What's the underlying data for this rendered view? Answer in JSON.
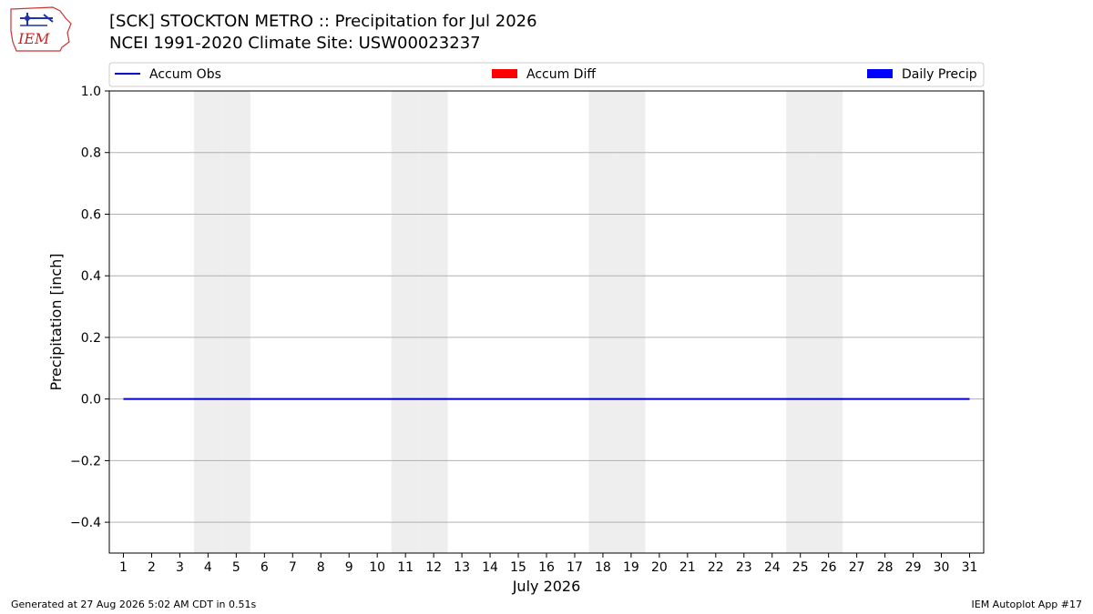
{
  "header": {
    "title_line1": "[SCK] STOCKTON METRO :: Precipitation for Jul 2026",
    "title_line2": "NCEI 1991-2020 Climate Site: USW00023237"
  },
  "logo": {
    "text": "IEM",
    "color": "#cc2222"
  },
  "footer": {
    "generated": "Generated at 27 Aug 2026 5:02 AM CDT in 0.51s",
    "app": "IEM Autoplot App #17"
  },
  "chart_data": {
    "type": "line",
    "xlabel": "July 2026",
    "ylabel": "Precipitation [inch]",
    "ylim": [
      -0.5,
      1.0
    ],
    "yticks": [
      -0.4,
      -0.2,
      0.0,
      0.2,
      0.4,
      0.6,
      0.8,
      1.0
    ],
    "ytick_labels": [
      "−0.4",
      "−0.2",
      "0.0",
      "0.2",
      "0.4",
      "0.6",
      "0.8",
      "1.0"
    ],
    "categories": [
      "1",
      "2",
      "3",
      "4",
      "5",
      "6",
      "7",
      "8",
      "9",
      "10",
      "11",
      "12",
      "13",
      "14",
      "15",
      "16",
      "17",
      "18",
      "19",
      "20",
      "21",
      "22",
      "23",
      "24",
      "25",
      "26",
      "27",
      "28",
      "29",
      "30",
      "31"
    ],
    "weekend_days": [
      4,
      5,
      11,
      12,
      18,
      19,
      25,
      26
    ],
    "grid": "horizontal",
    "legend_position": "top",
    "legend": [
      {
        "label": "Accum Obs",
        "kind": "line",
        "color": "#0000cc"
      },
      {
        "label": "Accum Diff",
        "kind": "bar",
        "color": "#ff0000"
      },
      {
        "label": "Daily Precip",
        "kind": "bar",
        "color": "#0000ff"
      }
    ],
    "series": [
      {
        "name": "Accum Obs",
        "kind": "line",
        "color": "#0000cc",
        "values": [
          0,
          0,
          0,
          0,
          0,
          0,
          0,
          0,
          0,
          0,
          0,
          0,
          0,
          0,
          0,
          0,
          0,
          0,
          0,
          0,
          0,
          0,
          0,
          0,
          0,
          0,
          0,
          0,
          0,
          0,
          0
        ]
      }
    ]
  }
}
